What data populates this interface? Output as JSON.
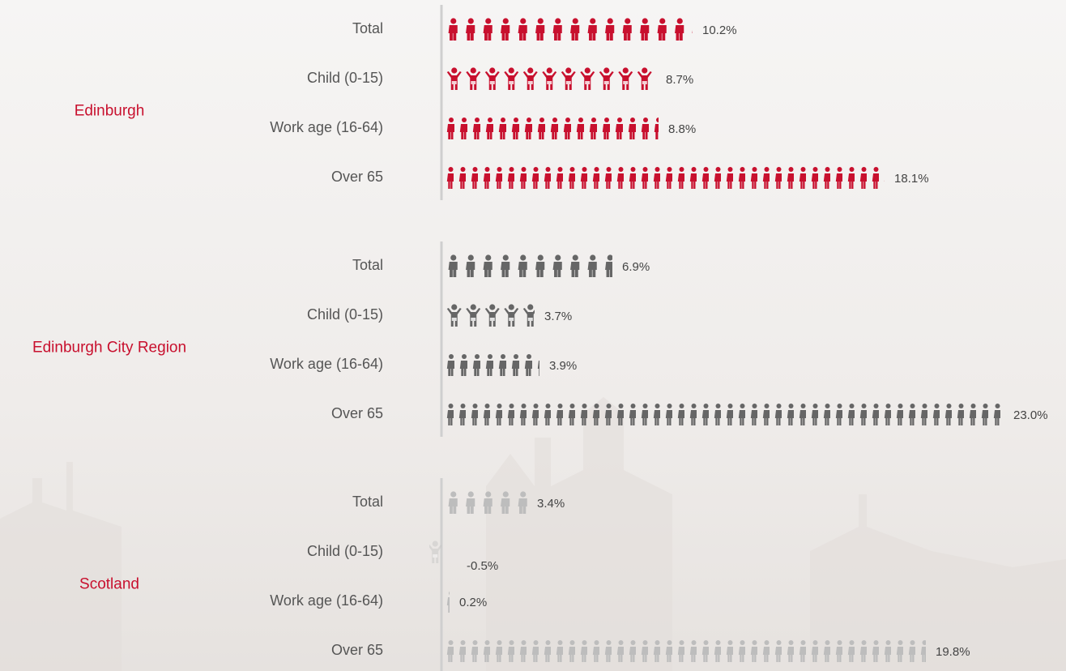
{
  "chart_data": {
    "type": "pictogram",
    "categories": [
      "Total",
      "Child (0-15)",
      "Work age (16-64)",
      "Over 65"
    ],
    "series": [
      {
        "name": "Edinburgh",
        "color": "#c8102e",
        "values": [
          10.2,
          8.7,
          8.8,
          18.1
        ],
        "value_labels": [
          "10.2%",
          "8.7%",
          "8.8%",
          "18.1%"
        ]
      },
      {
        "name": "Edinburgh City Region",
        "color": "#666666",
        "values": [
          6.9,
          3.7,
          3.9,
          23.0
        ],
        "value_labels": [
          "6.9%",
          "3.7%",
          "3.9%",
          "23.0%"
        ]
      },
      {
        "name": "Scotland",
        "color": "#bdbdbd",
        "values": [
          3.4,
          -0.5,
          0.2,
          19.8
        ],
        "value_labels": [
          "3.4%",
          "-0.5%",
          "0.2%",
          "19.8%"
        ]
      }
    ]
  }
}
